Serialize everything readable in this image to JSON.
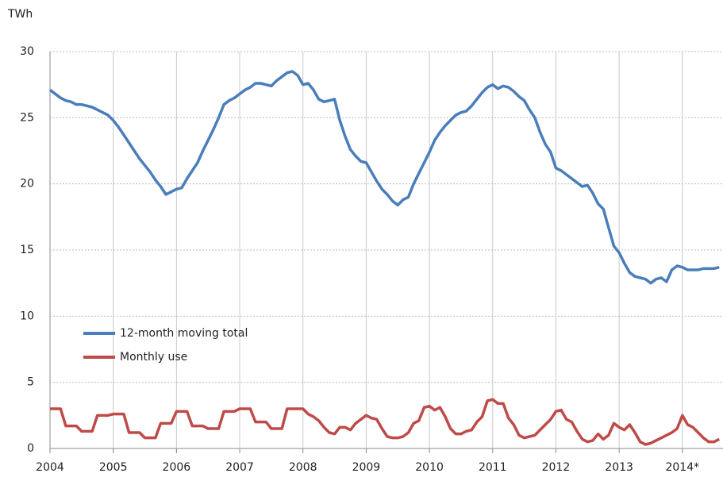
{
  "chart_data": {
    "type": "line",
    "y_axis_label": "TWh",
    "x": [
      2004,
      2004.083,
      2004.167,
      2004.25,
      2004.333,
      2004.417,
      2004.5,
      2004.583,
      2004.667,
      2004.75,
      2004.833,
      2004.917,
      2005,
      2005.083,
      2005.167,
      2005.25,
      2005.333,
      2005.417,
      2005.5,
      2005.583,
      2005.667,
      2005.75,
      2005.833,
      2005.917,
      2006,
      2006.083,
      2006.167,
      2006.25,
      2006.333,
      2006.417,
      2006.5,
      2006.583,
      2006.667,
      2006.75,
      2006.833,
      2006.917,
      2007,
      2007.083,
      2007.167,
      2007.25,
      2007.333,
      2007.417,
      2007.5,
      2007.583,
      2007.667,
      2007.75,
      2007.833,
      2007.917,
      2008,
      2008.083,
      2008.167,
      2008.25,
      2008.333,
      2008.417,
      2008.5,
      2008.583,
      2008.667,
      2008.75,
      2008.833,
      2008.917,
      2009,
      2009.083,
      2009.167,
      2009.25,
      2009.333,
      2009.417,
      2009.5,
      2009.583,
      2009.667,
      2009.75,
      2009.833,
      2009.917,
      2010,
      2010.083,
      2010.167,
      2010.25,
      2010.333,
      2010.417,
      2010.5,
      2010.583,
      2010.667,
      2010.75,
      2010.833,
      2010.917,
      2011,
      2011.083,
      2011.167,
      2011.25,
      2011.333,
      2011.417,
      2011.5,
      2011.583,
      2011.667,
      2011.75,
      2011.833,
      2011.917,
      2012,
      2012.083,
      2012.167,
      2012.25,
      2012.333,
      2012.417,
      2012.5,
      2012.583,
      2012.667,
      2012.75,
      2012.833,
      2012.917,
      2013,
      2013.083,
      2013.167,
      2013.25,
      2013.333,
      2013.417,
      2013.5,
      2013.583,
      2013.667,
      2013.75,
      2013.833,
      2013.917,
      2014,
      2014.083,
      2014.167,
      2014.25,
      2014.333,
      2014.417,
      2014.5,
      2014.583
    ],
    "series": [
      {
        "name": "12-month moving total",
        "color": "#4a7ebb",
        "values": [
          27.1,
          26.8,
          26.5,
          26.3,
          26.2,
          26.0,
          26.0,
          25.9,
          25.8,
          25.6,
          25.4,
          25.2,
          24.8,
          24.3,
          23.7,
          23.1,
          22.5,
          21.9,
          21.4,
          20.9,
          20.3,
          19.8,
          19.2,
          19.4,
          19.6,
          19.7,
          20.4,
          21.0,
          21.6,
          22.5,
          23.3,
          24.1,
          25.0,
          26.0,
          26.3,
          26.5,
          26.8,
          27.1,
          27.3,
          27.6,
          27.6,
          27.5,
          27.4,
          27.8,
          28.1,
          28.4,
          28.5,
          28.2,
          27.5,
          27.6,
          27.1,
          26.4,
          26.2,
          26.3,
          26.4,
          24.8,
          23.6,
          22.6,
          22.1,
          21.7,
          21.6,
          20.9,
          20.2,
          19.6,
          19.2,
          18.7,
          18.4,
          18.8,
          19.0,
          20.0,
          20.8,
          21.6,
          22.4,
          23.3,
          23.9,
          24.4,
          24.8,
          25.2,
          25.4,
          25.5,
          25.9,
          26.4,
          26.9,
          27.3,
          27.5,
          27.2,
          27.4,
          27.3,
          27.0,
          26.6,
          26.3,
          25.6,
          25.0,
          23.9,
          23.0,
          22.4,
          21.2,
          21.0,
          20.7,
          20.4,
          20.1,
          19.8,
          19.9,
          19.3,
          18.5,
          18.1,
          16.7,
          15.3,
          14.8,
          14.0,
          13.3,
          13.0,
          12.9,
          12.8,
          12.5,
          12.8,
          12.9,
          12.6,
          13.5,
          13.8,
          13.7,
          13.5,
          13.5,
          13.5,
          13.6,
          13.6,
          13.6,
          13.7
        ]
      },
      {
        "name": "Monthly use",
        "color": "#be4b48",
        "values": [
          3.0,
          3.0,
          3.0,
          1.7,
          1.7,
          1.7,
          1.3,
          1.3,
          1.3,
          2.5,
          2.5,
          2.5,
          2.6,
          2.6,
          2.6,
          1.2,
          1.2,
          1.2,
          0.8,
          0.8,
          0.8,
          1.9,
          1.9,
          1.9,
          2.8,
          2.8,
          2.8,
          1.7,
          1.7,
          1.7,
          1.5,
          1.5,
          1.5,
          2.8,
          2.8,
          2.8,
          3.0,
          3.0,
          3.0,
          2.0,
          2.0,
          2.0,
          1.5,
          1.5,
          1.5,
          3.0,
          3.0,
          3.0,
          3.0,
          2.6,
          2.4,
          2.1,
          1.6,
          1.2,
          1.1,
          1.6,
          1.6,
          1.4,
          1.9,
          2.2,
          2.5,
          2.3,
          2.2,
          1.5,
          0.9,
          0.8,
          0.8,
          0.9,
          1.2,
          1.9,
          2.1,
          3.1,
          3.2,
          2.9,
          3.1,
          2.4,
          1.5,
          1.1,
          1.1,
          1.3,
          1.4,
          2.0,
          2.4,
          3.6,
          3.7,
          3.4,
          3.4,
          2.3,
          1.8,
          1.0,
          0.8,
          0.9,
          1.0,
          1.4,
          1.8,
          2.2,
          2.8,
          2.9,
          2.2,
          2.0,
          1.3,
          0.7,
          0.5,
          0.6,
          1.1,
          0.7,
          1.0,
          1.9,
          1.6,
          1.4,
          1.8,
          1.2,
          0.5,
          0.3,
          0.4,
          0.6,
          0.8,
          1.0,
          1.2,
          1.5,
          2.5,
          1.8,
          1.6,
          1.2,
          0.8,
          0.5,
          0.5,
          0.7
        ]
      }
    ],
    "xlim": [
      2004,
      2014.63
    ],
    "xticks": [
      2004,
      2005,
      2006,
      2007,
      2008,
      2009,
      2010,
      2011,
      2012,
      2013,
      {
        "value": 2014,
        "label": "2014*"
      }
    ],
    "ylim": [
      0,
      30
    ],
    "yticks": [
      0,
      5,
      10,
      15,
      20,
      25,
      30
    ],
    "grid": true,
    "legend": "lower left"
  }
}
